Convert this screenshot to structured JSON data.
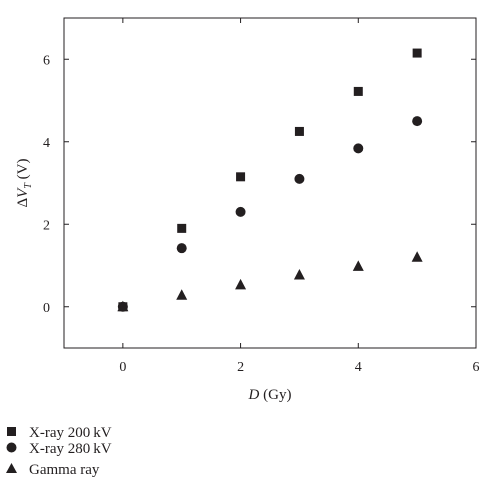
{
  "chart_data": {
    "type": "scatter",
    "xlabel": {
      "italic": "D",
      "rest": " (Gy)"
    },
    "ylabel": {
      "prefix": "Δ",
      "italic": "V",
      "sub": "T",
      "rest": " (V)"
    },
    "xlim": [
      -1,
      6
    ],
    "ylim": [
      -1,
      7
    ],
    "xticks": [
      0,
      2,
      4,
      6
    ],
    "yticks": [
      0,
      2,
      4,
      6
    ],
    "xtick_labels": [
      "0",
      "2",
      "4",
      "6"
    ],
    "ytick_labels": [
      "0",
      "2",
      "4",
      "6"
    ],
    "grid": false,
    "legend_position": "bottom-left, below plot",
    "series": [
      {
        "name": "X-ray 200 kV",
        "marker": "square",
        "x": [
          0,
          1,
          2,
          3,
          4,
          5
        ],
        "y": [
          0,
          1.9,
          3.15,
          4.25,
          5.22,
          6.15
        ]
      },
      {
        "name": "X-ray 280 kV",
        "marker": "circle",
        "x": [
          0,
          1,
          2,
          3,
          4,
          5
        ],
        "y": [
          0,
          1.42,
          2.3,
          3.1,
          3.84,
          4.5
        ]
      },
      {
        "name": "Gamma ray",
        "marker": "triangle",
        "x": [
          0,
          1,
          2,
          3,
          4,
          5
        ],
        "y": [
          0,
          0.28,
          0.53,
          0.77,
          0.98,
          1.2
        ]
      }
    ],
    "colors": {
      "marker": "#231f20",
      "axis": "#231f20"
    }
  }
}
